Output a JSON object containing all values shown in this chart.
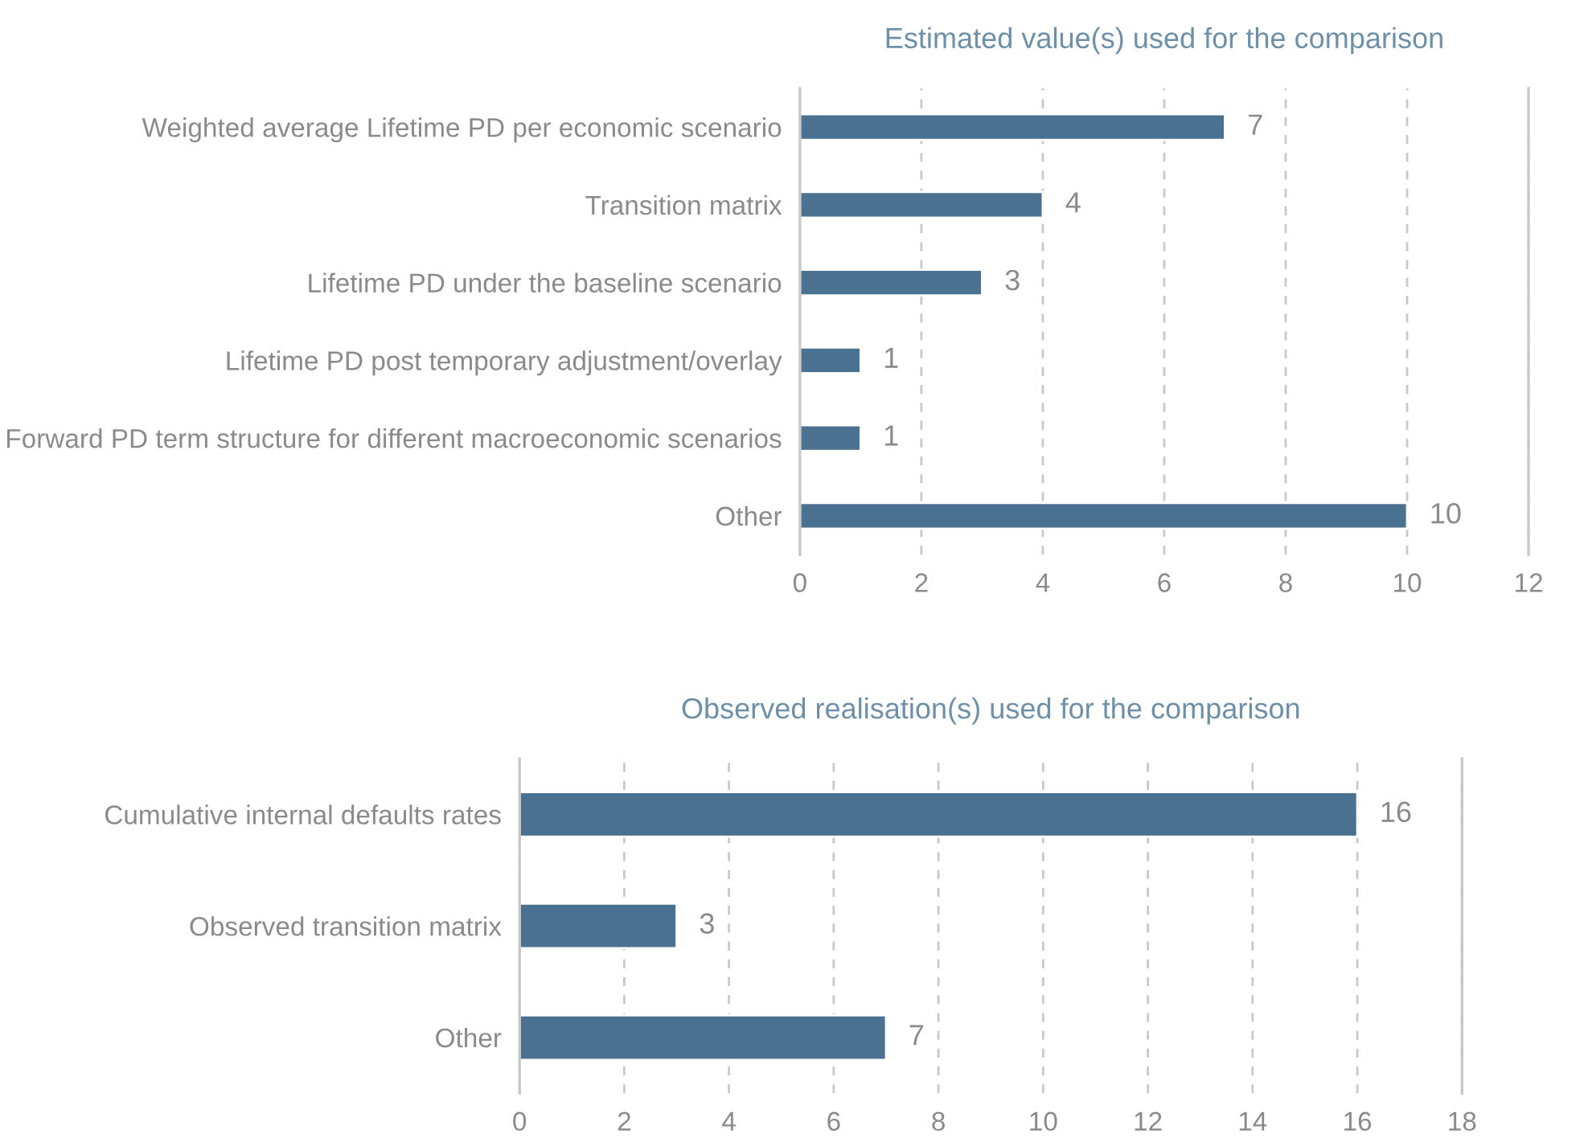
{
  "chart_data": [
    {
      "type": "bar",
      "orientation": "horizontal",
      "title": "Estimated value(s) used for the comparison",
      "categories": [
        "Weighted average Lifetime PD per economic scenario",
        "Transition matrix",
        "Lifetime PD under the baseline scenario",
        "Lifetime PD post temporary adjustment/overlay",
        "Forward PD term structure for different macroeconomic scenarios",
        "Other"
      ],
      "values": [
        7,
        4,
        3,
        1,
        1,
        10
      ],
      "color": "#4a7190",
      "xlim": [
        0,
        12
      ],
      "xticks": [
        0,
        2,
        4,
        6,
        8,
        10,
        12
      ],
      "grid": "x",
      "data_labels": true,
      "legend": false
    },
    {
      "type": "bar",
      "orientation": "horizontal",
      "title": "Observed realisation(s) used for the comparison",
      "categories": [
        "Cumulative internal defaults rates",
        "Observed transition matrix",
        "Other"
      ],
      "values": [
        16,
        3,
        7
      ],
      "color": "#4a7190",
      "xlim": [
        0,
        18
      ],
      "xticks": [
        0,
        2,
        4,
        6,
        8,
        10,
        12,
        14,
        16,
        18
      ],
      "grid": "x",
      "data_labels": true,
      "legend": false
    }
  ]
}
